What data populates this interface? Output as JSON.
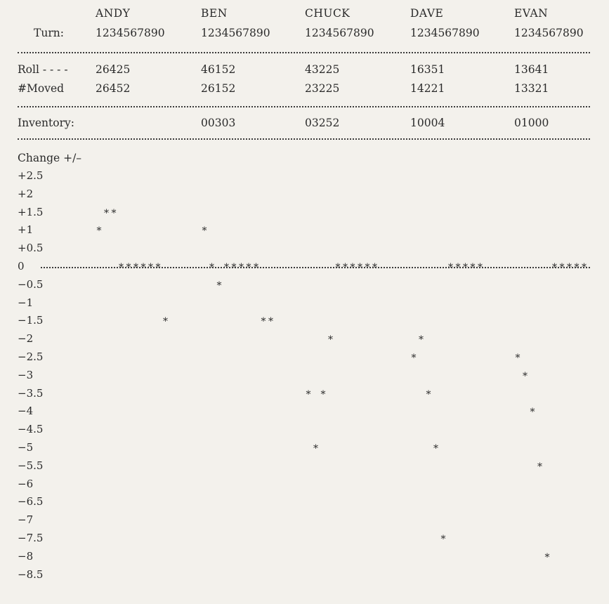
{
  "players": [
    "ANDY",
    "BEN",
    "CHUCK",
    "DAVE",
    "EVAN"
  ],
  "turn_label": "Turn:",
  "turns": [
    "1234567890",
    "1234567890",
    "1234567890",
    "1234567890",
    "1234567890"
  ],
  "roll_label": "Roll - - - -",
  "rolls": [
    "26425",
    "46152",
    "43225",
    "16351",
    "13641"
  ],
  "moved_label": "#Moved",
  "moved": [
    "26452",
    "26152",
    "23225",
    "14221",
    "13321"
  ],
  "inventory_label": "Inventory:",
  "inventory": [
    "",
    "00303",
    "03252",
    "10004",
    "01000"
  ],
  "change_label": "Change +/–",
  "chart_data": {
    "type": "scatter",
    "title": "",
    "ylabel": "Change +/–",
    "y_ticks": [
      "+2.5",
      "+2",
      "+1.5",
      "+1",
      "+0.5",
      "0",
      "−0.5",
      "−1",
      "−1.5",
      "−2",
      "−2.5",
      "−3",
      "−3.5",
      "−4",
      "−4.5",
      "−5",
      "−5.5",
      "−6",
      "−6.5",
      "−7",
      "−7.5",
      "−8",
      "−8.5"
    ],
    "ylim": [
      -8.5,
      2.5
    ],
    "x_labels": [
      "1",
      "2",
      "3",
      "4",
      "5",
      "6",
      "7",
      "8",
      "9",
      "10"
    ],
    "series": [
      {
        "name": "ANDY",
        "values": [
          1,
          1.5,
          1.5,
          0,
          0,
          0,
          0,
          0,
          0,
          -1.5
        ]
      },
      {
        "name": "BEN",
        "values": [
          1,
          0,
          -0.5,
          0,
          0,
          0,
          0,
          0,
          -1.5,
          -1.5
        ]
      },
      {
        "name": "CHUCK",
        "values": [
          -3.5,
          -5,
          -3.5,
          -2,
          0,
          0,
          0,
          0,
          0,
          0
        ]
      },
      {
        "name": "DAVE",
        "values": [
          -2.5,
          -2,
          -3.5,
          -5,
          -7.5,
          0,
          0,
          0,
          0,
          0
        ]
      },
      {
        "name": "EVAN",
        "values": [
          -2.5,
          -3,
          -4,
          -5.5,
          -8,
          0,
          0,
          0,
          0,
          0
        ]
      }
    ]
  }
}
